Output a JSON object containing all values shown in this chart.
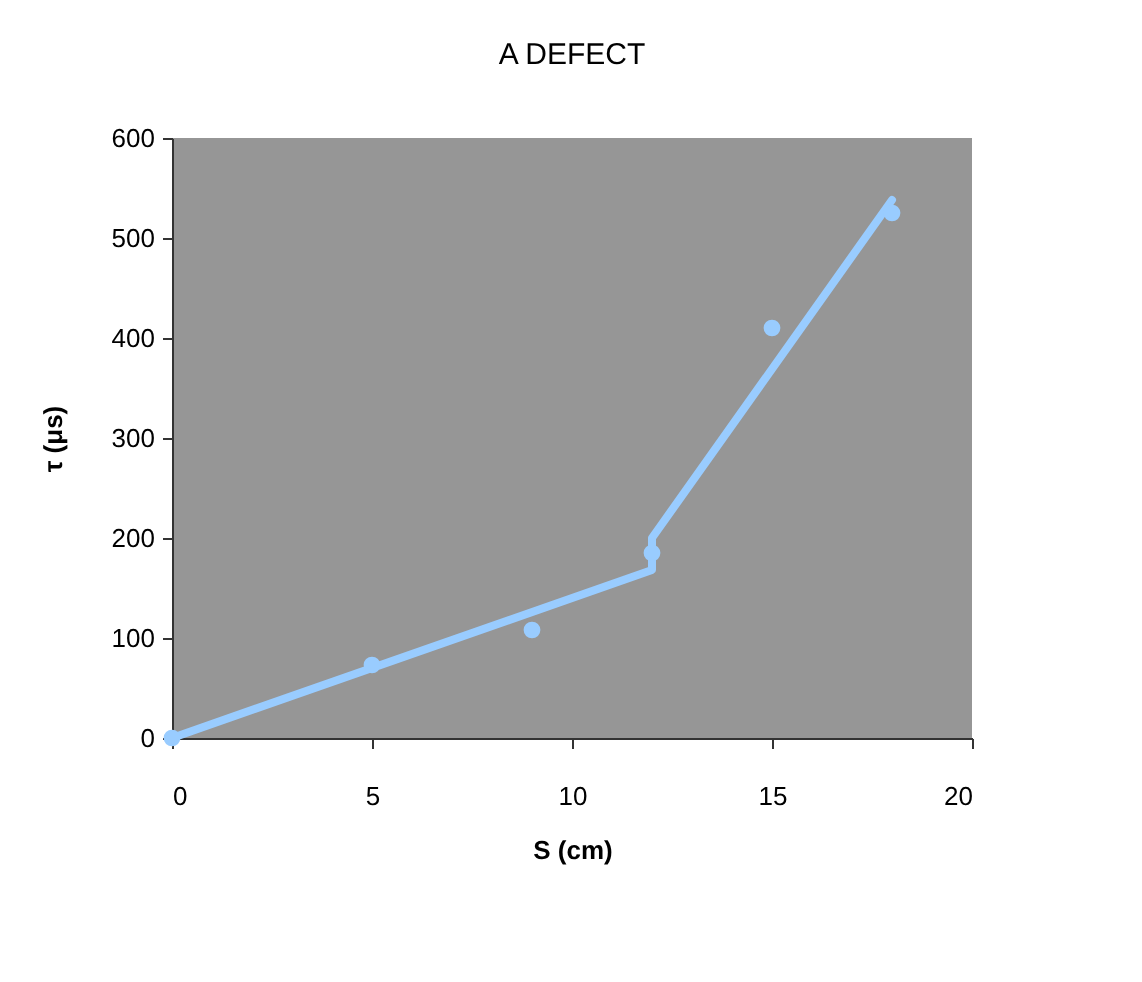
{
  "chart_data": {
    "type": "scatter",
    "title": "A DEFECT",
    "xlabel": "S (cm)",
    "ylabel": "τ (μs)",
    "xlim": [
      0,
      20
    ],
    "xticks": [
      0,
      5,
      10,
      15,
      20
    ],
    "ylim": [
      0,
      600
    ],
    "yticks": [
      0,
      100,
      200,
      300,
      400,
      500,
      600
    ],
    "grid": false,
    "series": [
      {
        "color": "#99ccff",
        "marker": "circle",
        "x": [
          0,
          5,
          9,
          12,
          15,
          18
        ],
        "values": [
          0,
          73,
          108,
          185,
          410,
          525
        ]
      },
      {
        "type": "line",
        "color": "#99ccff",
        "line_style": "solid",
        "x": [
          0,
          12,
          12,
          18
        ],
        "values": [
          0,
          168,
          200,
          538
        ]
      }
    ]
  }
}
